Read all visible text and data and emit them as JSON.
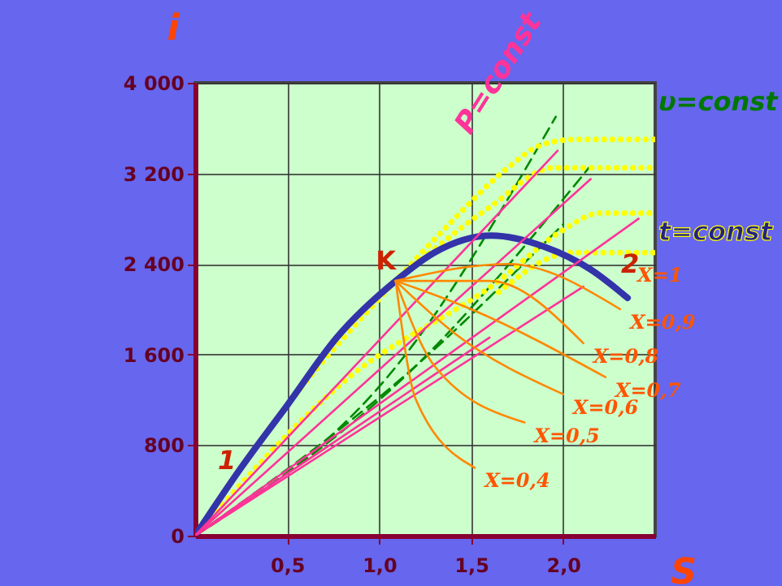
{
  "chart_data": {
    "type": "line",
    "xlabel": "S",
    "ylabel": "i",
    "xlim": [
      0,
      2.5
    ],
    "ylim": [
      0,
      4000
    ],
    "xticks": [
      {
        "value": 0.5,
        "label": "0,5"
      },
      {
        "value": 1,
        "label": "1,0"
      },
      {
        "value": 1.5,
        "label": "1,5"
      },
      {
        "value": 2,
        "label": "2,0"
      }
    ],
    "yticks": [
      {
        "value": 0,
        "label": "0"
      },
      {
        "value": 800,
        "label": "800"
      },
      {
        "value": 1600,
        "label": "1 600"
      },
      {
        "value": 2400,
        "label": "2 400"
      },
      {
        "value": 3200,
        "label": "3 200"
      },
      {
        "value": 4000,
        "label": "4 000"
      }
    ],
    "grid": true,
    "marker": "none",
    "series": [
      {
        "color": "#3333aa",
        "line_style": "solid",
        "x": [
          0,
          0.25,
          0.5,
          0.77,
          1.09,
          1.3,
          1.61,
          1.9,
          2.15,
          2.35
        ],
        "values": [
          0,
          600,
          1150,
          1750,
          2250,
          2500,
          2650,
          2550,
          2350,
          2100
        ]
      },
      {
        "color": "#ff3399",
        "line_style": "solid",
        "x": [
          0,
          1.97
        ],
        "values": [
          0,
          3400
        ]
      },
      {
        "color": "#ff3399",
        "line_style": "solid",
        "x": [
          0,
          2.15
        ],
        "values": [
          0,
          3150
        ]
      },
      {
        "color": "#ff3399",
        "line_style": "solid",
        "x": [
          0,
          2.41
        ],
        "values": [
          0,
          2800
        ]
      },
      {
        "color": "#ff3399",
        "line_style": "solid",
        "x": [
          0,
          2.11
        ],
        "values": [
          0,
          2200
        ]
      },
      {
        "color": "#ff3399",
        "line_style": "solid",
        "x": [
          0,
          1.6
        ],
        "values": [
          0,
          1750
        ]
      },
      {
        "color": "#ff8800",
        "line_style": "solid",
        "x": [
          1.09,
          1.7,
          2.31
        ],
        "values": [
          2250,
          2400,
          2000
        ]
      },
      {
        "color": "#ff8800",
        "line_style": "solid",
        "x": [
          1.09,
          1.6,
          2.11
        ],
        "values": [
          2250,
          2250,
          1700
        ]
      },
      {
        "color": "#ff8800",
        "line_style": "solid",
        "x": [
          1.09,
          1.5,
          2.23
        ],
        "values": [
          2250,
          2000,
          1400
        ]
      },
      {
        "color": "#ff8800",
        "line_style": "solid",
        "x": [
          1.09,
          1.4,
          2.0
        ],
        "values": [
          2250,
          1800,
          1250
        ]
      },
      {
        "color": "#ff8800",
        "line_style": "solid",
        "x": [
          1.09,
          1.3,
          1.79
        ],
        "values": [
          2250,
          1500,
          1000
        ]
      },
      {
        "color": "#ff8800",
        "line_style": "solid",
        "x": [
          1.09,
          1.2,
          1.52
        ],
        "values": [
          2250,
          1200,
          600
        ]
      },
      {
        "color": "#008800",
        "line_style": "dashed",
        "x": [
          0,
          1.12,
          1.96
        ],
        "values": [
          0,
          1550,
          3700
        ]
      },
      {
        "color": "#008800",
        "line_style": "dashed",
        "x": [
          0,
          1.2,
          2.14
        ],
        "values": [
          0,
          1500,
          3250
        ]
      },
      {
        "color": "#008800",
        "line_style": "dashed",
        "x": [
          0,
          1.2,
          2.0
        ],
        "values": [
          0,
          1500,
          2750
        ]
      },
      {
        "color": "#ffff00",
        "line_style": "dotted",
        "x": [
          0,
          0.5,
          1.09,
          1.38,
          1.7,
          1.88,
          2.07,
          2.5
        ],
        "values": [
          0,
          1150,
          2250,
          2750,
          3250,
          3450,
          3500,
          3500
        ]
      },
      {
        "color": "#ffff00",
        "line_style": "dotted",
        "x": [
          1.2,
          1.6,
          1.95,
          2.5
        ],
        "values": [
          2400,
          2900,
          3250,
          3250
        ]
      },
      {
        "color": "#ffff00",
        "line_style": "dotted",
        "x": [
          0,
          0.8,
          1.65,
          2.0,
          2.2,
          2.5
        ],
        "values": [
          0,
          1350,
          2250,
          2700,
          2850,
          2850
        ]
      },
      {
        "color": "#ffff00",
        "line_style": "dotted",
        "x": [
          1.65,
          2.05,
          2.5
        ],
        "values": [
          2150,
          2500,
          2500
        ]
      }
    ],
    "annotations": [
      {
        "text": "K",
        "x": 1.09,
        "y": 2250
      },
      {
        "text": "X=1",
        "x": 2.35,
        "y": 2100
      },
      {
        "text": "X=0,9",
        "x": 2.31,
        "y": 2000
      },
      {
        "text": "X=0,8",
        "x": 2.11,
        "y": 1700
      },
      {
        "text": "X=0,7",
        "x": 2.23,
        "y": 1400
      },
      {
        "text": "X=0,6",
        "x": 2.0,
        "y": 1250
      },
      {
        "text": "X=0,5",
        "x": 1.79,
        "y": 1000
      },
      {
        "text": "X=0,4",
        "x": 1.52,
        "y": 600
      },
      "1",
      "2",
      "υ=const",
      "t=const",
      "P=const"
    ]
  }
}
